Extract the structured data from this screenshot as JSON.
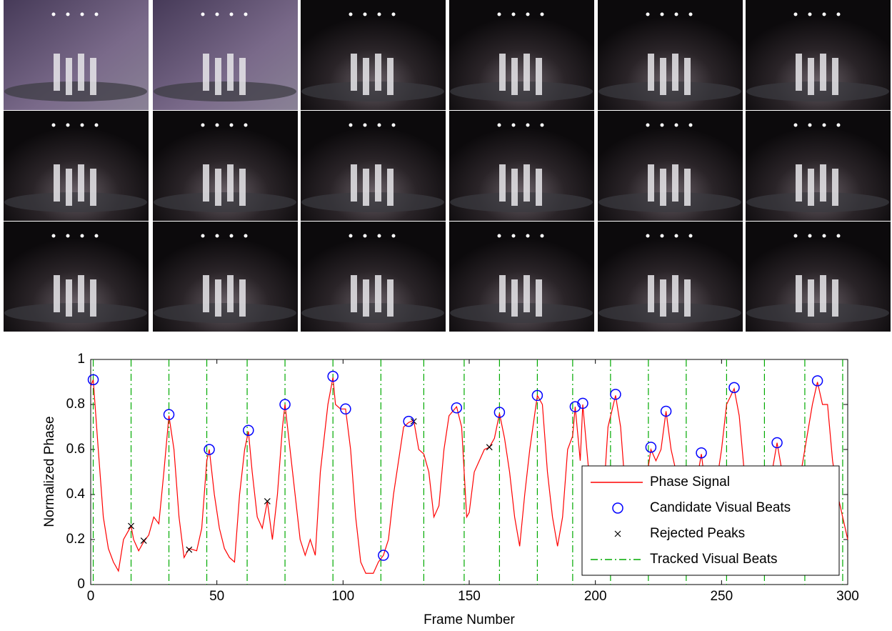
{
  "chart_data": {
    "type": "line",
    "xlabel": "Frame Number",
    "ylabel": "Normalized Phase",
    "xlim": [
      0,
      300
    ],
    "ylim": [
      0,
      1
    ],
    "xticks": [
      0,
      50,
      100,
      150,
      200,
      250,
      300
    ],
    "yticks": [
      0,
      0.2,
      0.4,
      0.6,
      0.8,
      1
    ],
    "legend": "lower right",
    "series": [
      {
        "name": "Phase Signal",
        "color": "#ff0000",
        "marker": "line",
        "x": [
          0,
          1,
          3,
          5,
          7,
          9,
          11,
          13,
          15,
          16,
          17,
          19,
          21,
          23,
          25,
          27,
          29,
          31,
          33,
          35,
          37,
          39,
          42,
          44,
          46,
          47,
          49,
          51,
          53,
          55,
          57,
          59,
          61,
          62.5,
          64,
          66,
          68,
          70,
          72,
          74,
          76,
          77,
          79,
          81,
          83,
          85,
          87,
          89,
          91,
          94,
          96,
          97,
          99,
          101,
          103,
          105,
          107,
          109,
          112,
          114,
          116,
          118,
          120,
          122,
          124,
          126,
          128,
          130,
          132,
          134,
          136,
          138,
          140,
          142,
          145,
          147,
          149,
          150,
          152,
          154,
          156,
          158,
          160,
          162,
          164,
          166,
          168,
          170,
          172,
          174,
          177,
          179,
          181,
          183,
          185,
          187,
          189,
          191,
          192,
          194,
          195,
          197,
          199,
          201,
          203,
          205,
          208,
          210,
          212,
          214,
          216,
          218,
          220,
          222,
          224,
          226,
          228,
          230,
          232,
          234,
          236,
          238,
          240,
          242,
          244,
          246,
          248,
          250,
          252,
          255,
          257,
          259,
          261,
          263,
          265,
          268,
          270,
          272,
          274,
          276,
          278,
          280,
          283,
          286,
          288,
          290,
          292,
          294,
          296,
          298,
          300
        ],
        "values": [
          0.88,
          0.91,
          0.6,
          0.3,
          0.16,
          0.1,
          0.06,
          0.2,
          0.24,
          0.26,
          0.2,
          0.15,
          0.19,
          0.22,
          0.3,
          0.27,
          0.5,
          0.75,
          0.6,
          0.3,
          0.12,
          0.16,
          0.15,
          0.25,
          0.55,
          0.6,
          0.4,
          0.25,
          0.16,
          0.12,
          0.1,
          0.4,
          0.6,
          0.68,
          0.5,
          0.3,
          0.25,
          0.37,
          0.2,
          0.4,
          0.7,
          0.8,
          0.6,
          0.4,
          0.2,
          0.13,
          0.2,
          0.13,
          0.5,
          0.8,
          0.92,
          0.8,
          0.78,
          0.78,
          0.6,
          0.3,
          0.1,
          0.05,
          0.05,
          0.1,
          0.13,
          0.2,
          0.4,
          0.55,
          0.7,
          0.72,
          0.73,
          0.6,
          0.58,
          0.5,
          0.3,
          0.35,
          0.6,
          0.75,
          0.79,
          0.7,
          0.3,
          0.32,
          0.5,
          0.55,
          0.6,
          0.61,
          0.65,
          0.76,
          0.65,
          0.5,
          0.3,
          0.17,
          0.4,
          0.6,
          0.84,
          0.8,
          0.5,
          0.3,
          0.17,
          0.3,
          0.6,
          0.66,
          0.79,
          0.55,
          0.8,
          0.55,
          0.3,
          0.2,
          0.35,
          0.7,
          0.84,
          0.7,
          0.4,
          0.3,
          0.25,
          0.4,
          0.45,
          0.6,
          0.55,
          0.6,
          0.77,
          0.6,
          0.5,
          0.35,
          0.3,
          0.4,
          0.45,
          0.58,
          0.4,
          0.3,
          0.45,
          0.6,
          0.8,
          0.87,
          0.75,
          0.5,
          0.35,
          0.3,
          0.35,
          0.4,
          0.5,
          0.63,
          0.5,
          0.4,
          0.35,
          0.4,
          0.6,
          0.8,
          0.9,
          0.8,
          0.8,
          0.55,
          0.4,
          0.3,
          0.2
        ]
      },
      {
        "name": "Candidate Visual Beats",
        "color": "#0000ff",
        "marker": "circle",
        "x": [
          1,
          31,
          47,
          62.5,
          77,
          96,
          101,
          116,
          126,
          145,
          162,
          177,
          192,
          195,
          208,
          222,
          228,
          242,
          255,
          272,
          288
        ],
        "values": [
          0.91,
          0.755,
          0.6,
          0.685,
          0.8,
          0.925,
          0.78,
          0.13,
          0.725,
          0.785,
          0.765,
          0.84,
          0.79,
          0.805,
          0.845,
          0.61,
          0.77,
          0.585,
          0.875,
          0.63,
          0.905
        ]
      },
      {
        "name": "Rejected Peaks",
        "color": "#000000",
        "marker": "x",
        "x": [
          16,
          21,
          39,
          70,
          128,
          158
        ],
        "values": [
          0.26,
          0.195,
          0.155,
          0.37,
          0.725,
          0.61
        ]
      },
      {
        "name": "Tracked Visual Beats",
        "color": "#00aa00",
        "marker": "vline",
        "x": [
          1,
          16,
          31,
          46,
          62,
          77,
          96,
          115,
          132,
          148,
          162,
          177,
          191,
          206,
          221,
          236,
          252,
          267,
          283,
          298
        ]
      }
    ]
  }
}
